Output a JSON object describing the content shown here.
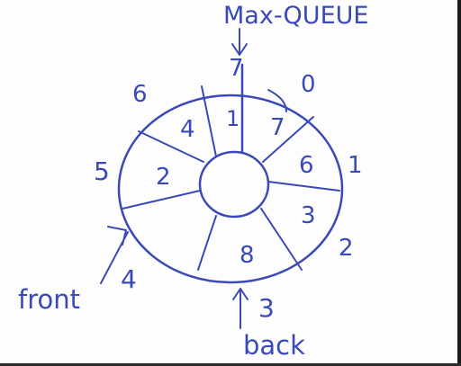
{
  "title": "Max-QUEUE",
  "colors": {
    "ink": "#3a49b8",
    "paper": "#fdfdfd",
    "frame": "#1b1b1b"
  },
  "index_labels": [
    "0",
    "1",
    "2",
    "3",
    "4",
    "5",
    "6",
    "7"
  ],
  "slot_values": [
    {
      "index": "0",
      "value": "7"
    },
    {
      "index": "1",
      "value": "6"
    },
    {
      "index": "2",
      "value": "3"
    },
    {
      "index": "3",
      "value": "8"
    },
    {
      "index": "5",
      "value": "2"
    },
    {
      "index": "6",
      "value": "4"
    },
    {
      "index": "7",
      "value": "1"
    }
  ],
  "pointers": {
    "front": "front",
    "back": "back"
  }
}
